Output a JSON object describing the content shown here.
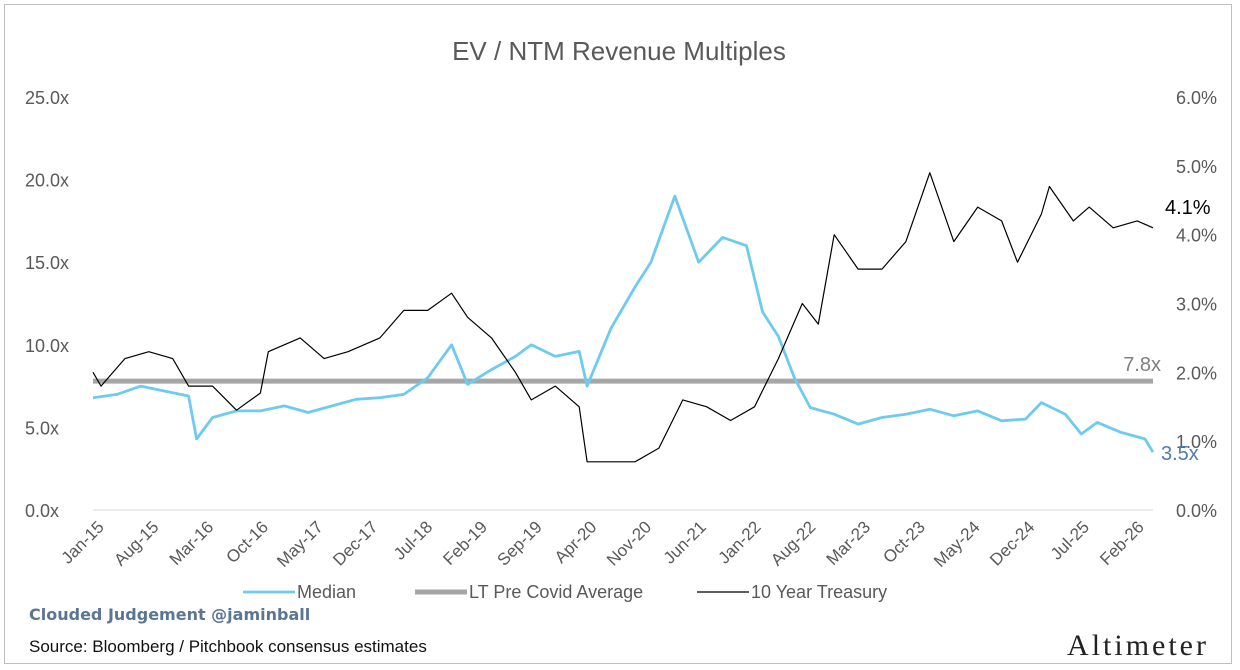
{
  "chart_data": {
    "type": "line",
    "title": "EV / NTM Revenue Multiples",
    "x_tick_labels": [
      "Jan-15",
      "Aug-15",
      "Mar-16",
      "Oct-16",
      "May-17",
      "Dec-17",
      "Jul-18",
      "Feb-19",
      "Sep-19",
      "Apr-20",
      "Nov-20",
      "Jun-21",
      "Jan-22",
      "Aug-22",
      "Mar-23",
      "Oct-23",
      "May-24",
      "Dec-24",
      "Jul-25",
      "Feb-26"
    ],
    "x_range": [
      "2015-01",
      "2026-02"
    ],
    "y_left": {
      "ticks": [
        "0.0x",
        "5.0x",
        "10.0x",
        "15.0x",
        "20.0x",
        "25.0x"
      ],
      "range": [
        0,
        25
      ]
    },
    "y_right": {
      "ticks": [
        "0.0%",
        "1.0%",
        "2.0%",
        "3.0%",
        "4.0%",
        "5.0%",
        "6.0%"
      ],
      "range": [
        0,
        6
      ]
    },
    "grid": false,
    "legend_position": "bottom",
    "series": [
      {
        "name": "Median",
        "axis": "left",
        "color": "#6fcbee",
        "points": [
          [
            "2015-01",
            6.8
          ],
          [
            "2015-04",
            7.0
          ],
          [
            "2015-07",
            7.5
          ],
          [
            "2015-10",
            7.2
          ],
          [
            "2016-01",
            6.9
          ],
          [
            "2016-02",
            4.3
          ],
          [
            "2016-04",
            5.6
          ],
          [
            "2016-07",
            6.0
          ],
          [
            "2016-10",
            6.0
          ],
          [
            "2017-01",
            6.3
          ],
          [
            "2017-04",
            5.9
          ],
          [
            "2017-07",
            6.3
          ],
          [
            "2017-10",
            6.7
          ],
          [
            "2018-01",
            6.8
          ],
          [
            "2018-04",
            7.0
          ],
          [
            "2018-07",
            8.0
          ],
          [
            "2018-10",
            10.0
          ],
          [
            "2018-12",
            7.6
          ],
          [
            "2019-03",
            8.5
          ],
          [
            "2019-06",
            9.3
          ],
          [
            "2019-08",
            10.0
          ],
          [
            "2019-11",
            9.3
          ],
          [
            "2020-02",
            9.6
          ],
          [
            "2020-03",
            7.5
          ],
          [
            "2020-06",
            11.0
          ],
          [
            "2020-09",
            13.5
          ],
          [
            "2020-11",
            15.0
          ],
          [
            "2021-02",
            19.0
          ],
          [
            "2021-05",
            15.0
          ],
          [
            "2021-08",
            16.5
          ],
          [
            "2021-11",
            16.0
          ],
          [
            "2022-01",
            12.0
          ],
          [
            "2022-03",
            10.5
          ],
          [
            "2022-05",
            8.0
          ],
          [
            "2022-07",
            6.2
          ],
          [
            "2022-10",
            5.8
          ],
          [
            "2023-01",
            5.2
          ],
          [
            "2023-04",
            5.6
          ],
          [
            "2023-07",
            5.8
          ],
          [
            "2023-10",
            6.1
          ],
          [
            "2024-01",
            5.7
          ],
          [
            "2024-04",
            6.0
          ],
          [
            "2024-07",
            5.4
          ],
          [
            "2024-10",
            5.5
          ],
          [
            "2024-12",
            6.5
          ],
          [
            "2025-03",
            5.8
          ],
          [
            "2025-05",
            4.6
          ],
          [
            "2025-07",
            5.3
          ],
          [
            "2025-10",
            4.7
          ],
          [
            "2026-01",
            4.3
          ],
          [
            "2026-02",
            3.5
          ]
        ]
      },
      {
        "name": "LT Pre Covid Average",
        "axis": "left",
        "color": "#a6a6a6",
        "points": [
          [
            "2015-01",
            7.8
          ],
          [
            "2026-02",
            7.8
          ]
        ]
      },
      {
        "name": "10 Year Treasury",
        "axis": "right",
        "color": "#000000",
        "points": [
          [
            "2015-01",
            2.0
          ],
          [
            "2015-02",
            1.8
          ],
          [
            "2015-05",
            2.2
          ],
          [
            "2015-08",
            2.3
          ],
          [
            "2015-11",
            2.2
          ],
          [
            "2016-01",
            1.8
          ],
          [
            "2016-04",
            1.8
          ],
          [
            "2016-07",
            1.45
          ],
          [
            "2016-10",
            1.7
          ],
          [
            "2016-11",
            2.3
          ],
          [
            "2017-03",
            2.5
          ],
          [
            "2017-06",
            2.2
          ],
          [
            "2017-09",
            2.3
          ],
          [
            "2018-01",
            2.5
          ],
          [
            "2018-04",
            2.9
          ],
          [
            "2018-07",
            2.9
          ],
          [
            "2018-10",
            3.15
          ],
          [
            "2018-12",
            2.8
          ],
          [
            "2019-03",
            2.5
          ],
          [
            "2019-06",
            2.0
          ],
          [
            "2019-08",
            1.6
          ],
          [
            "2019-11",
            1.8
          ],
          [
            "2020-02",
            1.5
          ],
          [
            "2020-03",
            0.7
          ],
          [
            "2020-06",
            0.7
          ],
          [
            "2020-09",
            0.7
          ],
          [
            "2020-12",
            0.9
          ],
          [
            "2021-03",
            1.6
          ],
          [
            "2021-06",
            1.5
          ],
          [
            "2021-09",
            1.3
          ],
          [
            "2021-12",
            1.5
          ],
          [
            "2022-03",
            2.2
          ],
          [
            "2022-06",
            3.0
          ],
          [
            "2022-08",
            2.7
          ],
          [
            "2022-10",
            4.0
          ],
          [
            "2023-01",
            3.5
          ],
          [
            "2023-04",
            3.5
          ],
          [
            "2023-07",
            3.9
          ],
          [
            "2023-10",
            4.9
          ],
          [
            "2024-01",
            3.9
          ],
          [
            "2024-04",
            4.4
          ],
          [
            "2024-07",
            4.2
          ],
          [
            "2024-09",
            3.6
          ],
          [
            "2024-12",
            4.3
          ],
          [
            "2025-01",
            4.7
          ],
          [
            "2025-04",
            4.2
          ],
          [
            "2025-06",
            4.4
          ],
          [
            "2025-09",
            4.1
          ],
          [
            "2025-12",
            4.2
          ],
          [
            "2026-02",
            4.1
          ]
        ]
      }
    ],
    "annotations": {
      "avg_label": "7.8x",
      "median_end_label": "3.5x",
      "treasury_end_label": "4.1%"
    }
  },
  "footer": {
    "watermark": "Clouded Judgement @jaminball",
    "source": "Source: Bloomberg / Pitchbook consensus estimates",
    "logo": "Altimeter"
  }
}
